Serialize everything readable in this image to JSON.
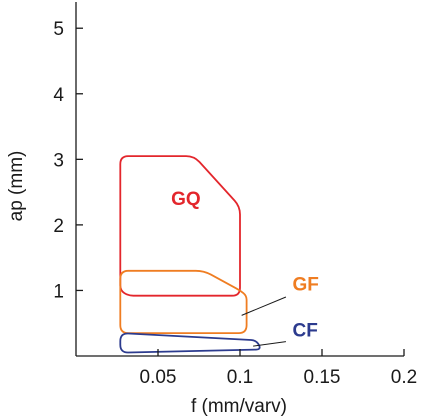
{
  "chart_data": {
    "type": "area",
    "xlabel": "f (mm/varv)",
    "ylabel": "ap (mm)",
    "xlim": [
      0,
      0.2
    ],
    "ylim": [
      0,
      5.4
    ],
    "xticks": [
      {
        "value": 0.05,
        "label": "0.05"
      },
      {
        "value": 0.1,
        "label": "0.1"
      },
      {
        "value": 0.15,
        "label": "0.15"
      },
      {
        "value": 0.2,
        "label": "0.2"
      }
    ],
    "yticks": [
      {
        "value": 1,
        "label": "1"
      },
      {
        "value": 2,
        "label": "2"
      },
      {
        "value": 3,
        "label": "3"
      },
      {
        "value": 4,
        "label": "4"
      },
      {
        "value": 5,
        "label": "5"
      }
    ],
    "grid": false,
    "regions": [
      {
        "name": "GQ",
        "color": "#e3262c",
        "points": [
          [
            0.027,
            3.05
          ],
          [
            0.072,
            3.05
          ],
          [
            0.1,
            2.28
          ],
          [
            0.1,
            0.92
          ],
          [
            0.032,
            0.92
          ],
          [
            0.027,
            1.0
          ]
        ],
        "label": {
          "text": "GQ",
          "x": 0.058,
          "y": 2.3
        }
      },
      {
        "name": "GF",
        "color": "#ef7d22",
        "points": [
          [
            0.027,
            1.3
          ],
          [
            0.078,
            1.3
          ],
          [
            0.1,
            1.0
          ],
          [
            0.104,
            0.92
          ],
          [
            0.104,
            0.35
          ],
          [
            0.027,
            0.35
          ]
        ],
        "label": {
          "text": "GF",
          "x": 0.132,
          "y": 1.0
        },
        "leader": [
          [
            0.128,
            0.9
          ],
          [
            0.101,
            0.62
          ]
        ]
      },
      {
        "name": "CF",
        "color": "#2c3b8e",
        "points": [
          [
            0.027,
            0.35
          ],
          [
            0.11,
            0.24
          ],
          [
            0.113,
            0.1
          ],
          [
            0.027,
            0.05
          ]
        ],
        "label": {
          "text": "CF",
          "x": 0.132,
          "y": 0.3
        },
        "leader": [
          [
            0.128,
            0.22
          ],
          [
            0.108,
            0.15
          ]
        ]
      }
    ]
  }
}
